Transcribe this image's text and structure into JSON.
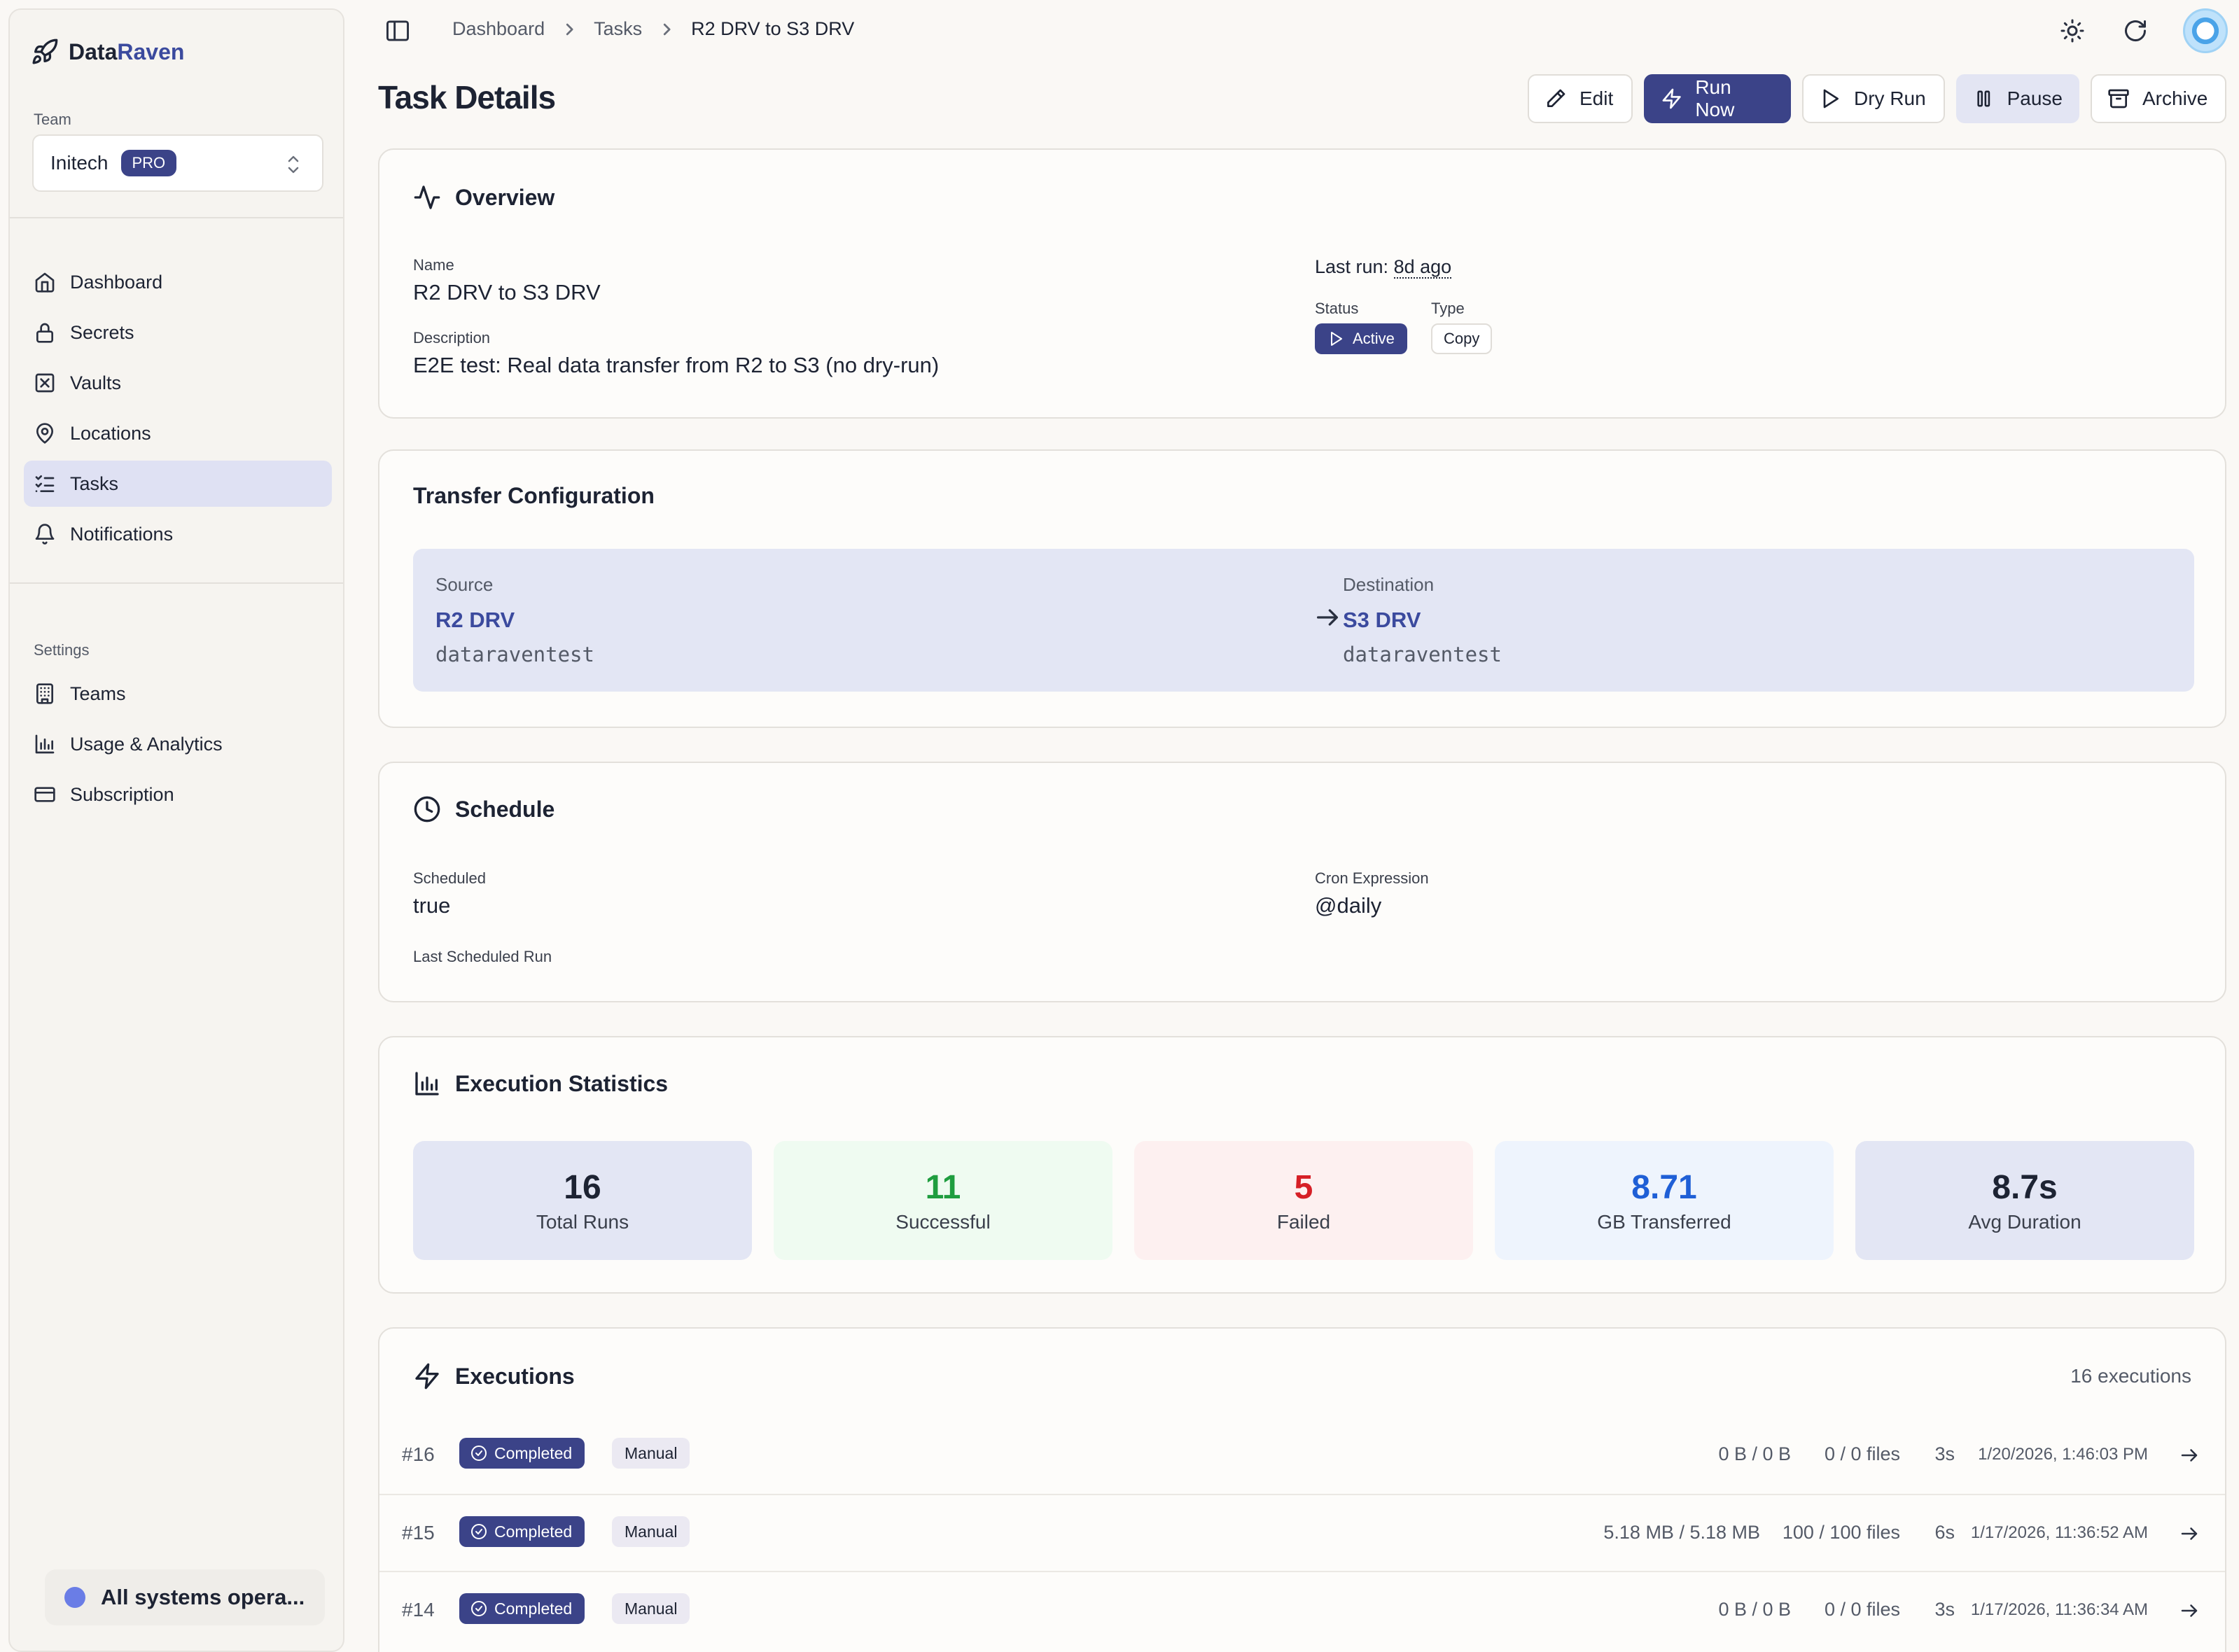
{
  "app": {
    "brand_part1": "Data",
    "brand_part2": "Raven"
  },
  "sidebar": {
    "team_label": "Team",
    "team_name": "Initech",
    "team_plan": "PRO",
    "nav": [
      {
        "label": "Dashboard",
        "icon": "home-icon"
      },
      {
        "label": "Secrets",
        "icon": "lock-icon"
      },
      {
        "label": "Vaults",
        "icon": "vault-icon"
      },
      {
        "label": "Locations",
        "icon": "map-pin-icon"
      },
      {
        "label": "Tasks",
        "icon": "list-checks-icon",
        "active": true
      },
      {
        "label": "Notifications",
        "icon": "bell-icon"
      }
    ],
    "settings_label": "Settings",
    "settings_nav": [
      {
        "label": "Teams",
        "icon": "building-icon"
      },
      {
        "label": "Usage & Analytics",
        "icon": "bar-chart-icon"
      },
      {
        "label": "Subscription",
        "icon": "credit-card-icon"
      }
    ],
    "system_status": "All systems opera..."
  },
  "breadcrumb": [
    "Dashboard",
    "Tasks",
    "R2 DRV to S3 DRV"
  ],
  "page": {
    "title": "Task Details",
    "actions": {
      "edit": "Edit",
      "run_now": "Run Now",
      "dry_run": "Dry Run",
      "pause": "Pause",
      "archive": "Archive"
    }
  },
  "overview": {
    "heading": "Overview",
    "name_label": "Name",
    "name": "R2 DRV to S3 DRV",
    "description_label": "Description",
    "description": "E2E test: Real data transfer from R2 to S3 (no dry-run)",
    "last_run_label": "Last run:",
    "last_run": "8d ago",
    "status_label": "Status",
    "status": "Active",
    "type_label": "Type",
    "type": "Copy"
  },
  "transfer": {
    "heading": "Transfer Configuration",
    "source_label": "Source",
    "source_name": "R2 DRV",
    "source_bucket": "dataraventest",
    "destination_label": "Destination",
    "destination_name": "S3 DRV",
    "destination_bucket": "dataraventest"
  },
  "schedule": {
    "heading": "Schedule",
    "scheduled_label": "Scheduled",
    "scheduled": "true",
    "cron_label": "Cron Expression",
    "cron": "@daily",
    "last_scheduled_label": "Last Scheduled Run"
  },
  "stats": {
    "heading": "Execution Statistics",
    "total_runs": "16",
    "total_runs_label": "Total Runs",
    "successful": "11",
    "successful_label": "Successful",
    "failed": "5",
    "failed_label": "Failed",
    "gb": "8.71",
    "gb_label": "GB Transferred",
    "avg": "8.7s",
    "avg_label": "Avg Duration"
  },
  "executions": {
    "heading": "Executions",
    "count": "16 executions",
    "rows": [
      {
        "id": "#16",
        "status": "Completed",
        "trigger": "Manual",
        "bytes": "0 B / 0 B",
        "files": "0 / 0 files",
        "duration": "3s",
        "time": "1/20/2026, 1:46:03 PM"
      },
      {
        "id": "#15",
        "status": "Completed",
        "trigger": "Manual",
        "bytes": "5.18 MB / 5.18 MB",
        "files": "100 / 100 files",
        "duration": "6s",
        "time": "1/17/2026, 11:36:52 AM"
      },
      {
        "id": "#14",
        "status": "Completed",
        "trigger": "Manual",
        "bytes": "0 B / 0 B",
        "files": "0 / 0 files",
        "duration": "3s",
        "time": "1/17/2026, 11:36:34 AM"
      }
    ]
  },
  "colors": {
    "accent": "#3b4388",
    "success": "#1f9d3f",
    "danger": "#d61f26",
    "info": "#1f5fd6"
  }
}
